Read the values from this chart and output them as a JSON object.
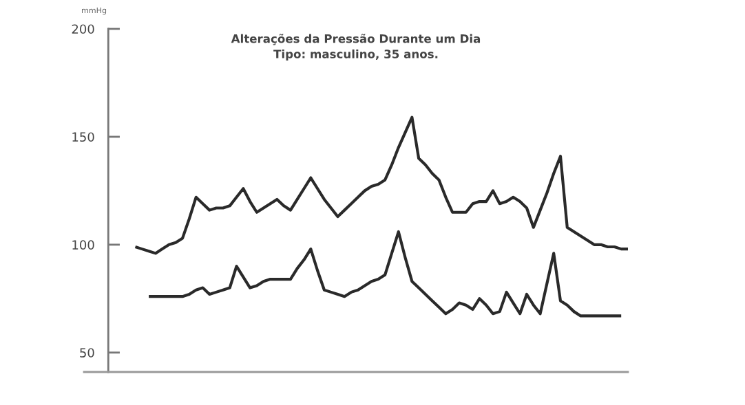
{
  "chart_data": {
    "type": "line",
    "title": "Alterações da Pressão Durante um Dia",
    "subtitle": "Tipo: masculino, 35 anos.",
    "ylabel": "mmHg",
    "categories": [
      null,
      null,
      null,
      null,
      null,
      null,
      null,
      null,
      null,
      null,
      null,
      null,
      null,
      null,
      null,
      null,
      null,
      null,
      null,
      null,
      null,
      null,
      null,
      null,
      null,
      null,
      null,
      null,
      null,
      null,
      null,
      null,
      null,
      null,
      null,
      null,
      null,
      null,
      null,
      null,
      null,
      null,
      null,
      null,
      null,
      null,
      null,
      null,
      null,
      null,
      null,
      null,
      null,
      null,
      null,
      null,
      null,
      null,
      null,
      null,
      null,
      null,
      null,
      null,
      null,
      null,
      null,
      null,
      null,
      null,
      null,
      null,
      null,
      null
    ],
    "ylim": [
      41,
      200
    ],
    "yticks": [
      50,
      100,
      150,
      200
    ],
    "tick_labels": "y",
    "grid": false,
    "legend": false,
    "marker": "none",
    "line_style": "solid",
    "series": [
      {
        "color": "#2a2a2a",
        "values": [
          99,
          98,
          97,
          96,
          98,
          100,
          101,
          103,
          112,
          122,
          119,
          116,
          117,
          117,
          118,
          122,
          126,
          120,
          115,
          117,
          119,
          121,
          118,
          116,
          121,
          126,
          131,
          126,
          121,
          117,
          113,
          116,
          119,
          122,
          125,
          127,
          128,
          130,
          137,
          145,
          152,
          159,
          140,
          137,
          133,
          130,
          122,
          115,
          115,
          115,
          119,
          120,
          120,
          125,
          119,
          120,
          122,
          120,
          117,
          108,
          116,
          124,
          133,
          141,
          108,
          106,
          104,
          102,
          100,
          100,
          99,
          99,
          98,
          98
        ]
      },
      {
        "color": "#2a2a2a",
        "values": [
          null,
          null,
          76,
          76,
          76,
          76,
          76,
          76,
          77,
          79,
          80,
          77,
          78,
          79,
          80,
          90,
          85,
          80,
          81,
          83,
          84,
          84,
          84,
          84,
          89,
          93,
          98,
          88,
          79,
          78,
          77,
          76,
          78,
          79,
          81,
          83,
          84,
          86,
          96,
          106,
          94,
          83,
          80,
          77,
          74,
          71,
          68,
          70,
          73,
          72,
          70,
          75,
          72,
          68,
          69,
          78,
          73,
          68,
          77,
          72,
          68,
          82,
          96,
          74,
          72,
          69,
          67,
          67,
          67,
          67,
          67,
          67,
          67,
          null
        ]
      }
    ]
  }
}
